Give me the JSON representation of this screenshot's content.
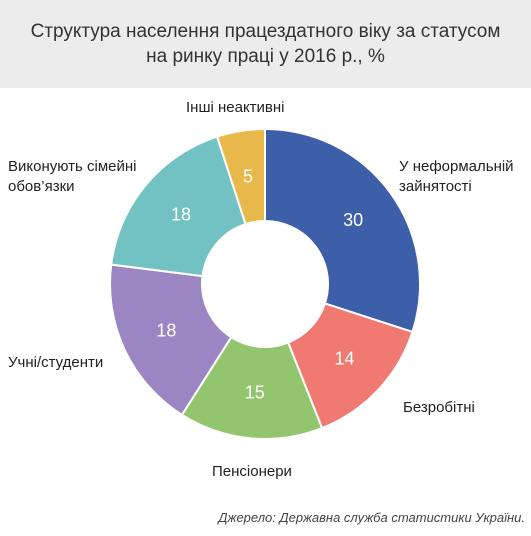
{
  "title": {
    "line1": "Структура населення працездатного віку за статусом",
    "line2": "на ринку праці у 2016 р., %"
  },
  "source": "Джерело: Державна служба статистики України.",
  "chart_data": {
    "type": "pie",
    "subtype": "donut",
    "unit": "%",
    "categories": [
      "У неформальній зайнятості",
      "Безробітні",
      "Пенсіонери",
      "Учні/студенти",
      "Виконують сімейні обов'язки",
      "Інші неактивні"
    ],
    "values": [
      30,
      14,
      15,
      18,
      18,
      5
    ],
    "colors": [
      "#3d5ea8",
      "#f07a72",
      "#93c56e",
      "#9b85c2",
      "#72c1c3",
      "#e8b84a"
    ],
    "labels": [
      [
        "У неформальній",
        "зайнятості"
      ],
      [
        "Безробітні"
      ],
      [
        "Пенсіонери"
      ],
      [
        "Учні/студенти"
      ],
      [
        "Виконують сімейні",
        "обов’язки"
      ],
      [
        "Інші неактивні"
      ]
    ],
    "legend": "none"
  }
}
